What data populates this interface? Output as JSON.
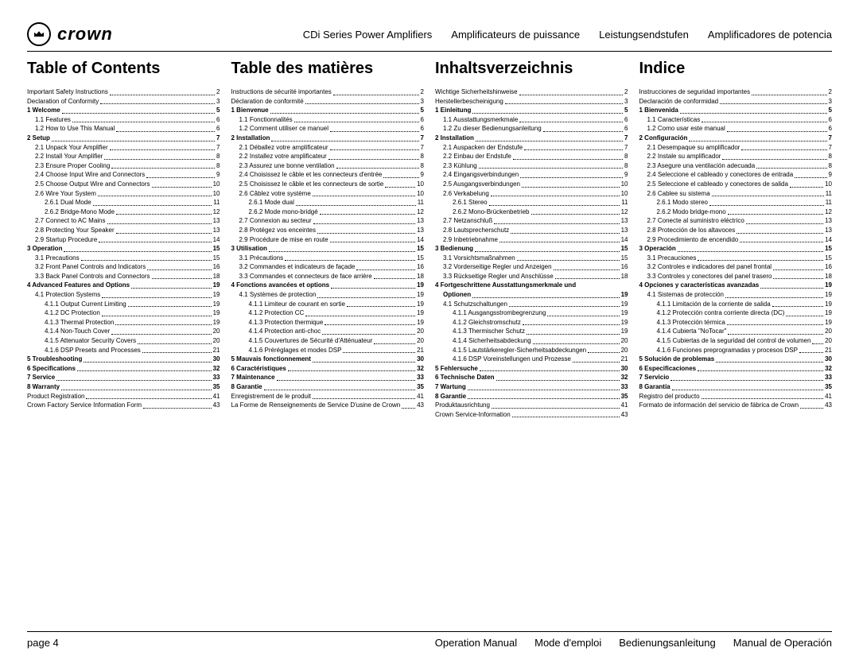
{
  "header": {
    "brand": "crown",
    "subtitles": [
      "CDi Series  Power Ampliﬁers",
      "Ampliﬁcateurs de puissance",
      "Leistungsendstufen",
      "Ampliﬁcadores de potencia"
    ]
  },
  "footer": {
    "page": "page 4",
    "labels": [
      "Operation Manual",
      "Mode d'emploi",
      "Bedienungsanleitung",
      "Manual de Operación"
    ]
  },
  "columns": [
    {
      "title": "Table of Contents",
      "rows": [
        {
          "t": "Important Safety Instructions",
          "p": "2",
          "b": 0,
          "i": 0
        },
        {
          "t": "Declaration of Conformity",
          "p": "3",
          "b": 0,
          "i": 0
        },
        {
          "t": "1 Welcome",
          "p": "5",
          "b": 1,
          "i": 0
        },
        {
          "t": "1.1 Features",
          "p": "6",
          "b": 0,
          "i": 1
        },
        {
          "t": "1.2 How to Use This Manual",
          "p": "6",
          "b": 0,
          "i": 1
        },
        {
          "t": "2 Setup",
          "p": "7",
          "b": 1,
          "i": 0
        },
        {
          "t": "2.1 Unpack Your Amplifier",
          "p": "7",
          "b": 0,
          "i": 1
        },
        {
          "t": "2.2 Install Your Amplifier",
          "p": "8",
          "b": 0,
          "i": 1
        },
        {
          "t": "2.3 Ensure Proper Cooling",
          "p": "8",
          "b": 0,
          "i": 1
        },
        {
          "t": "2.4 Choose Input Wire and Connectors",
          "p": "9",
          "b": 0,
          "i": 1
        },
        {
          "t": "2.5 Choose Output Wire and Connectors",
          "p": "10",
          "b": 0,
          "i": 1
        },
        {
          "t": "2.6 Wire Your System",
          "p": "10",
          "b": 0,
          "i": 1
        },
        {
          "t": "2.6.1 Dual Mode",
          "p": "11",
          "b": 0,
          "i": 2
        },
        {
          "t": "2.6.2 Bridge-Mono Mode",
          "p": "12",
          "b": 0,
          "i": 2
        },
        {
          "t": "2.7 Connect to AC Mains",
          "p": "13",
          "b": 0,
          "i": 1
        },
        {
          "t": "2.8 Protecting Your Speaker",
          "p": "13",
          "b": 0,
          "i": 1
        },
        {
          "t": "2.9 Startup Procedure",
          "p": "14",
          "b": 0,
          "i": 1
        },
        {
          "t": "3 Operation",
          "p": "15",
          "b": 1,
          "i": 0
        },
        {
          "t": "3.1 Precautions",
          "p": "15",
          "b": 0,
          "i": 1
        },
        {
          "t": "3.2 Front Panel Controls and Indicators",
          "p": "16",
          "b": 0,
          "i": 1
        },
        {
          "t": "3.3 Back Panel Controls and Connectors",
          "p": "18",
          "b": 0,
          "i": 1
        },
        {
          "t": "4 Advanced Features and Options",
          "p": "19",
          "b": 1,
          "i": 0
        },
        {
          "t": "4.1 Protection Systems",
          "p": "19",
          "b": 0,
          "i": 1
        },
        {
          "t": "4.1.1 Output Current Limiting",
          "p": "19",
          "b": 0,
          "i": 2
        },
        {
          "t": "4.1.2 DC Protection",
          "p": "19",
          "b": 0,
          "i": 2
        },
        {
          "t": "4.1.3 Thermal Protection",
          "p": "19",
          "b": 0,
          "i": 2
        },
        {
          "t": "4.1.4 Non-Touch Cover",
          "p": "20",
          "b": 0,
          "i": 2
        },
        {
          "t": "4.1.5 Attenuator Security Covers",
          "p": "20",
          "b": 0,
          "i": 2
        },
        {
          "t": "4.1.6 DSP Presets and Processes",
          "p": "21",
          "b": 0,
          "i": 2
        },
        {
          "t": "5 Troubleshooting",
          "p": "30",
          "b": 1,
          "i": 0
        },
        {
          "t": "6 Specifications",
          "p": "32",
          "b": 1,
          "i": 0
        },
        {
          "t": "7 Service",
          "p": "33",
          "b": 1,
          "i": 0
        },
        {
          "t": "8 Warranty",
          "p": "35",
          "b": 1,
          "i": 0
        },
        {
          "t": "Product Registration",
          "p": "41",
          "b": 0,
          "i": 0
        },
        {
          "t": "Crown Factory Service Information Form",
          "p": "43",
          "b": 0,
          "i": 0
        }
      ]
    },
    {
      "title": "Table des matières",
      "rows": [
        {
          "t": "Instructions de sécurité importantes",
          "p": "2",
          "b": 0,
          "i": 0
        },
        {
          "t": "Déclaration de conformité",
          "p": "3",
          "b": 0,
          "i": 0
        },
        {
          "t": "1 Bienvenue",
          "p": "5",
          "b": 1,
          "i": 0
        },
        {
          "t": "1.1 Fonctionnalités",
          "p": "6",
          "b": 0,
          "i": 1
        },
        {
          "t": "1.2 Comment utiliser ce manuel",
          "p": "6",
          "b": 0,
          "i": 1
        },
        {
          "t": "2 Installation",
          "p": "7",
          "b": 1,
          "i": 0
        },
        {
          "t": "2.1 Déballez votre amplificateur",
          "p": "7",
          "b": 0,
          "i": 1
        },
        {
          "t": "2.2 Installez votre amplificateur",
          "p": "8",
          "b": 0,
          "i": 1
        },
        {
          "t": "2.3 Assurez une bonne ventilation",
          "p": "8",
          "b": 0,
          "i": 1
        },
        {
          "t": "2.4 Choisissez le câble et les connecteurs d'entrée",
          "p": "9",
          "b": 0,
          "i": 1
        },
        {
          "t": "2.5 Choisissez le câble et les connecteurs de sortie",
          "p": "10",
          "b": 0,
          "i": 1
        },
        {
          "t": "2.6 Câblez votre système",
          "p": "10",
          "b": 0,
          "i": 1
        },
        {
          "t": "2.6.1 Mode dual",
          "p": "11",
          "b": 0,
          "i": 2
        },
        {
          "t": "2.6.2 Mode mono-bridgé",
          "p": "12",
          "b": 0,
          "i": 2
        },
        {
          "t": "2.7 Connexion au secteur",
          "p": "13",
          "b": 0,
          "i": 1
        },
        {
          "t": "2.8 Protégez vos enceintes",
          "p": "13",
          "b": 0,
          "i": 1
        },
        {
          "t": "2.9 Procédure de mise en route",
          "p": "14",
          "b": 0,
          "i": 1
        },
        {
          "t": "3 Utilisation",
          "p": "15",
          "b": 1,
          "i": 0
        },
        {
          "t": "3.1 Précautions",
          "p": "15",
          "b": 0,
          "i": 1
        },
        {
          "t": "3.2 Commandes et indicateurs de façade",
          "p": "16",
          "b": 0,
          "i": 1
        },
        {
          "t": "3.3 Commandes et connecteurs de face arrière",
          "p": "18",
          "b": 0,
          "i": 1
        },
        {
          "t": "4 Fonctions avancées et options",
          "p": "19",
          "b": 1,
          "i": 0
        },
        {
          "t": "4.1 Systèmes de protection",
          "p": "19",
          "b": 0,
          "i": 1
        },
        {
          "t": "4.1.1 Limiteur de courant en sortie",
          "p": "19",
          "b": 0,
          "i": 2
        },
        {
          "t": "4.1.2 Protection CC",
          "p": "19",
          "b": 0,
          "i": 2
        },
        {
          "t": "4.1.3 Protection thermique",
          "p": "19",
          "b": 0,
          "i": 2
        },
        {
          "t": "4.1.4 Protection anti-choc",
          "p": "20",
          "b": 0,
          "i": 2
        },
        {
          "t": "4.1.5 Couvertures de Sécurité d'Atténuateur",
          "p": "20",
          "b": 0,
          "i": 2
        },
        {
          "t": "4.1.6 Préréglages et modes DSP",
          "p": "21",
          "b": 0,
          "i": 2
        },
        {
          "t": "5 Mauvais fonctionnement",
          "p": "30",
          "b": 1,
          "i": 0
        },
        {
          "t": "6 Caractéristiques",
          "p": "32",
          "b": 1,
          "i": 0
        },
        {
          "t": "7 Maintenance",
          "p": "33",
          "b": 1,
          "i": 0
        },
        {
          "t": "8 Garantie",
          "p": "35",
          "b": 1,
          "i": 0
        },
        {
          "t": "Enregistrement de le produit",
          "p": "41",
          "b": 0,
          "i": 0
        },
        {
          "t": "La Forme de Renseignements de Service D'usine de Crown",
          "p": "43",
          "b": 0,
          "i": 0
        }
      ]
    },
    {
      "title": "Inhaltsverzeichnis",
      "rows": [
        {
          "t": "Wichtige Sicherheitshinweise",
          "p": "2",
          "b": 0,
          "i": 0
        },
        {
          "t": "Herstellerbescheinigung",
          "p": "3",
          "b": 0,
          "i": 0
        },
        {
          "t": "1 Einleitung",
          "p": "5",
          "b": 1,
          "i": 0
        },
        {
          "t": "1.1 Ausstattungsmerkmale",
          "p": "6",
          "b": 0,
          "i": 1
        },
        {
          "t": "1.2 Zu dieser Bedienungsanleitung",
          "p": "6",
          "b": 0,
          "i": 1
        },
        {
          "t": "2 Installation",
          "p": "7",
          "b": 1,
          "i": 0
        },
        {
          "t": "2.1 Auspacken der Endstufe",
          "p": "7",
          "b": 0,
          "i": 1
        },
        {
          "t": "2.2 Einbau der Endstufe",
          "p": "8",
          "b": 0,
          "i": 1
        },
        {
          "t": "2.3 Kühlung",
          "p": "8",
          "b": 0,
          "i": 1
        },
        {
          "t": "2.4 Eingangsverbindungen",
          "p": "9",
          "b": 0,
          "i": 1
        },
        {
          "t": "2.5 Ausgangsverbindungen",
          "p": "10",
          "b": 0,
          "i": 1
        },
        {
          "t": "2.6 Verkabelung",
          "p": "10",
          "b": 0,
          "i": 1
        },
        {
          "t": "2.6.1 Stereo",
          "p": "11",
          "b": 0,
          "i": 2
        },
        {
          "t": "2.6.2 Mono-Brückenbetrieb",
          "p": "12",
          "b": 0,
          "i": 2
        },
        {
          "t": "2.7 Netzanschluß",
          "p": "13",
          "b": 0,
          "i": 1
        },
        {
          "t": "2.8 Lautsprecherschutz",
          "p": "13",
          "b": 0,
          "i": 1
        },
        {
          "t": "2.9 Inbetriebnahme",
          "p": "14",
          "b": 0,
          "i": 1
        },
        {
          "t": "3 Bedienung",
          "p": "15",
          "b": 1,
          "i": 0
        },
        {
          "t": "3.1 Vorsichtsmaßnahmen",
          "p": "15",
          "b": 0,
          "i": 1
        },
        {
          "t": "3.2 Vorderseitige Regler und Anzeigen",
          "p": "16",
          "b": 0,
          "i": 1
        },
        {
          "t": "3.3 Rückseitige Regler und Anschlüsse",
          "p": "18",
          "b": 0,
          "i": 1
        },
        {
          "t": "4 Fortgeschrittene Ausstattungsmerkmale und",
          "p": "",
          "b": 1,
          "i": 0,
          "nodots": 1
        },
        {
          "t": "Optionen",
          "p": "19",
          "b": 1,
          "i": 1
        },
        {
          "t": "4.1 Schutzschaltungen",
          "p": "19",
          "b": 0,
          "i": 1
        },
        {
          "t": "4.1.1 Ausgangsstrombegrenzung",
          "p": "19",
          "b": 0,
          "i": 2
        },
        {
          "t": "4.1.2 Gleichstromschutz",
          "p": "19",
          "b": 0,
          "i": 2
        },
        {
          "t": "4.1.3 Thermischer Schutz",
          "p": "19",
          "b": 0,
          "i": 2
        },
        {
          "t": "4.1.4 Sicherheitsabdeckung",
          "p": "20",
          "b": 0,
          "i": 2
        },
        {
          "t": "4.1.5 Lautstärkeregler-Sicherheitsabdeckungen",
          "p": "20",
          "b": 0,
          "i": 2
        },
        {
          "t": "4.1.6 DSP Voreinstellungen und Prozesse",
          "p": "21",
          "b": 0,
          "i": 2
        },
        {
          "t": "5 Fehlersuche",
          "p": "30",
          "b": 1,
          "i": 0
        },
        {
          "t": "6 Technische Daten",
          "p": "32",
          "b": 1,
          "i": 0
        },
        {
          "t": "7 Wartung",
          "p": "33",
          "b": 1,
          "i": 0
        },
        {
          "t": "8 Garantie",
          "p": "35",
          "b": 1,
          "i": 0
        },
        {
          "t": "Produktausrichtung",
          "p": "41",
          "b": 0,
          "i": 0
        },
        {
          "t": "Crown Service-Information",
          "p": "43",
          "b": 0,
          "i": 0
        }
      ]
    },
    {
      "title": "Indice",
      "rows": [
        {
          "t": "Instrucciones de seguridad importantes",
          "p": "2",
          "b": 0,
          "i": 0
        },
        {
          "t": "Declaración de conformidad",
          "p": "3",
          "b": 0,
          "i": 0
        },
        {
          "t": "1 Bienvenida",
          "p": "5",
          "b": 1,
          "i": 0
        },
        {
          "t": "1.1 Características",
          "p": "6",
          "b": 0,
          "i": 1
        },
        {
          "t": "1.2 Como usar este manual",
          "p": "6",
          "b": 0,
          "i": 1
        },
        {
          "t": "2 Configuración",
          "p": "7",
          "b": 1,
          "i": 0
        },
        {
          "t": "2.1 Desempaque su amplificador",
          "p": "7",
          "b": 0,
          "i": 1
        },
        {
          "t": "2.2 Instale su amplificador",
          "p": "8",
          "b": 0,
          "i": 1
        },
        {
          "t": "2.3 Asegure una ventilación adecuada",
          "p": "8",
          "b": 0,
          "i": 1
        },
        {
          "t": "2.4 Seleccione el cableado y conectores de entrada",
          "p": "9",
          "b": 0,
          "i": 1
        },
        {
          "t": "2.5 Seleccione el cableado y conectores de salida",
          "p": "10",
          "b": 0,
          "i": 1
        },
        {
          "t": "2.6 Cablee su sistema",
          "p": "11",
          "b": 0,
          "i": 1
        },
        {
          "t": "2.6.1 Modo stereo",
          "p": "11",
          "b": 0,
          "i": 2
        },
        {
          "t": "2.6.2 Modo bridge-mono",
          "p": "12",
          "b": 0,
          "i": 2
        },
        {
          "t": "2.7 Conecte al suministro eléctrico",
          "p": "13",
          "b": 0,
          "i": 1
        },
        {
          "t": "2.8 Protección de los altavoces",
          "p": "13",
          "b": 0,
          "i": 1
        },
        {
          "t": "2.9 Procedimiento de encendido",
          "p": "14",
          "b": 0,
          "i": 1
        },
        {
          "t": "3 Operación",
          "p": "15",
          "b": 1,
          "i": 0
        },
        {
          "t": "3.1 Precauciones",
          "p": "15",
          "b": 0,
          "i": 1
        },
        {
          "t": "3.2 Controles e indicadores del panel frontal",
          "p": "16",
          "b": 0,
          "i": 1
        },
        {
          "t": "3.3 Controles y conectores del panel trasero",
          "p": "18",
          "b": 0,
          "i": 1
        },
        {
          "t": "4 Opciones y características avanzadas",
          "p": "19",
          "b": 1,
          "i": 0
        },
        {
          "t": "4.1 Sistemas de protección",
          "p": "19",
          "b": 0,
          "i": 1
        },
        {
          "t": "4.1.1 Limitación de la corriente de salida",
          "p": "19",
          "b": 0,
          "i": 2
        },
        {
          "t": "4.1.2 Protección contra corriente directa (DC)",
          "p": "19",
          "b": 0,
          "i": 2
        },
        {
          "t": "4.1.3 Protección térmica",
          "p": "19",
          "b": 0,
          "i": 2
        },
        {
          "t": "4.1.4 Cubierta \"NoTocar\"",
          "p": "20",
          "b": 0,
          "i": 2
        },
        {
          "t": "4.1.5 Cubiertas de la seguridad del control de volumen",
          "p": "20",
          "b": 0,
          "i": 2
        },
        {
          "t": "4.1.6 Funciones preprogramadas y procesos DSP",
          "p": "21",
          "b": 0,
          "i": 2
        },
        {
          "t": "5 Solución de problemas",
          "p": "30",
          "b": 1,
          "i": 0
        },
        {
          "t": "6 Especificaciones",
          "p": "32",
          "b": 1,
          "i": 0
        },
        {
          "t": "7 Servicio",
          "p": "33",
          "b": 1,
          "i": 0
        },
        {
          "t": "8 Garantía",
          "p": "35",
          "b": 1,
          "i": 0
        },
        {
          "t": "Registro del producto",
          "p": "41",
          "b": 0,
          "i": 0
        },
        {
          "t": "Formato de información del servicio de fábrica de Crown",
          "p": "43",
          "b": 0,
          "i": 0
        }
      ]
    }
  ]
}
